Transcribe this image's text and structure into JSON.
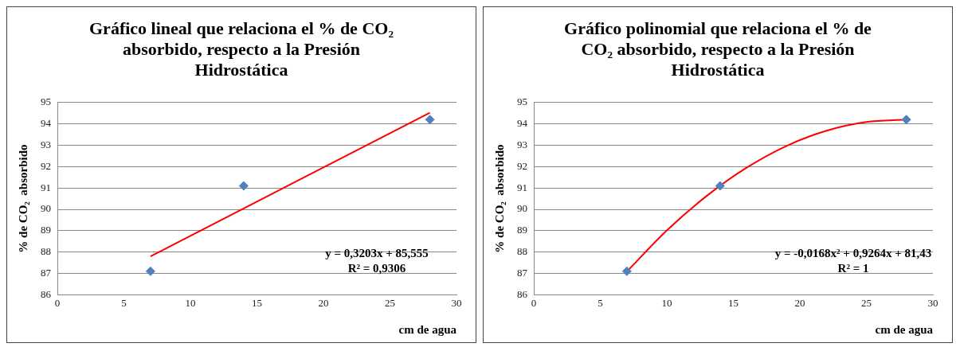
{
  "chart_data": [
    {
      "type": "scatter",
      "title": "Gráfico lineal que relaciona el % de CO₂ absorbido, respecto a la Presión Hidrostática",
      "xlabel": "cm de agua",
      "ylabel": "% de CO₂  absorbido",
      "xlim": [
        0,
        30
      ],
      "xticks": [
        0,
        5,
        10,
        15,
        20,
        25,
        30
      ],
      "ylim": [
        86,
        95
      ],
      "yticks": [
        86,
        87,
        88,
        89,
        90,
        91,
        92,
        93,
        94,
        95
      ],
      "grid": "y",
      "legend": false,
      "annotations": [
        "y = 0,3203x + 85,555",
        "R² = 0,9306"
      ],
      "series": [
        {
          "type": "scatter",
          "color": "#4f81bd",
          "marker": "diamond",
          "x": [
            7,
            14,
            28
          ],
          "values": [
            87.1,
            91.1,
            94.2
          ]
        },
        {
          "type": "line",
          "color": "#ff0000",
          "marker": "none",
          "line_style": "solid",
          "x": [
            7,
            28
          ],
          "values": [
            87.8,
            94.52
          ]
        }
      ]
    },
    {
      "type": "scatter",
      "title": "Gráfico polinomial que relaciona el % de CO₂ absorbido, respecto a la Presión Hidrostática",
      "xlabel": "cm de agua",
      "ylabel": "% de CO₂  absorbido",
      "xlim": [
        0,
        30
      ],
      "xticks": [
        0,
        5,
        10,
        15,
        20,
        25,
        30
      ],
      "ylim": [
        86,
        95
      ],
      "yticks": [
        86,
        87,
        88,
        89,
        90,
        91,
        92,
        93,
        94,
        95
      ],
      "grid": "y",
      "legend": false,
      "annotations": [
        "y = -0,0168x² + 0,9264x + 81,43",
        "R² = 1"
      ],
      "series": [
        {
          "type": "scatter",
          "color": "#4f81bd",
          "marker": "diamond",
          "x": [
            7,
            14,
            28
          ],
          "values": [
            87.1,
            91.1,
            94.2
          ]
        },
        {
          "type": "line",
          "color": "#ff0000",
          "marker": "none",
          "line_style": "solid",
          "x": [
            7,
            10,
            13,
            16,
            19,
            22,
            25,
            28
          ],
          "values": [
            87.09,
            89.01,
            90.63,
            91.95,
            92.97,
            93.68,
            94.09,
            94.2
          ]
        }
      ]
    }
  ]
}
